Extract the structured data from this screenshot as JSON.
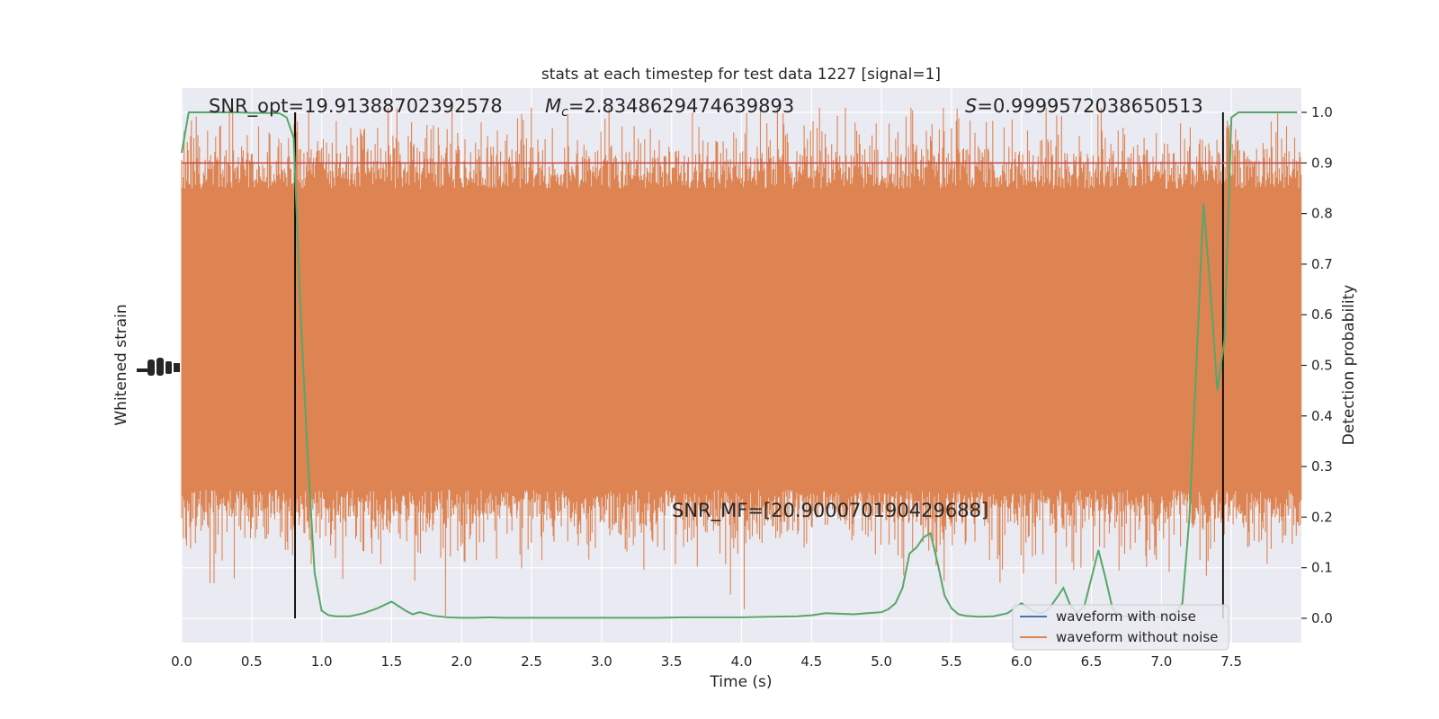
{
  "chart_data": {
    "type": "line",
    "title": "stats at each timestep for test data 1227 [signal=1]",
    "xlabel": "Time (s)",
    "ylabel_left": "Whitened strain",
    "ylabel_right": "Detection probability",
    "xlim": [
      0.0,
      8.0
    ],
    "ylim_right": [
      -0.048,
      1.048
    ],
    "x_ticks": [
      "0.0",
      "0.5",
      "1.0",
      "1.5",
      "2.0",
      "2.5",
      "3.0",
      "3.5",
      "4.0",
      "4.5",
      "5.0",
      "5.5",
      "6.0",
      "6.5",
      "7.0",
      "7.5"
    ],
    "y_ticks_right": [
      "0.0",
      "0.1",
      "0.2",
      "0.3",
      "0.4",
      "0.5",
      "0.6",
      "0.7",
      "0.8",
      "0.9",
      "1.0"
    ],
    "grid": true,
    "threshold": 0.9,
    "markers_x": [
      0.81,
      7.44
    ],
    "annotations": {
      "snr_opt": "SNR_opt=19.91388702392578",
      "mc_symbol": "M",
      "mc_sub": "c",
      "mc_value": "=2.8348629474639893",
      "s_symbol": "S",
      "s_value": "=0.9999572038650513",
      "snr_mf": "SNR_MF=[20.900070190429688]"
    },
    "legend": {
      "position": "lower-right",
      "entries": [
        "waveform with noise",
        "waveform without noise"
      ]
    },
    "series": [
      {
        "name": "Detection probability",
        "x": [
          0.0,
          0.05,
          0.1,
          0.2,
          0.3,
          0.4,
          0.5,
          0.6,
          0.7,
          0.75,
          0.8,
          0.85,
          0.9,
          0.95,
          1.0,
          1.05,
          1.1,
          1.2,
          1.3,
          1.4,
          1.5,
          1.6,
          1.65,
          1.7,
          1.8,
          1.9,
          2.0,
          2.1,
          2.2,
          2.3,
          2.4,
          2.5,
          2.6,
          2.8,
          3.0,
          3.2,
          3.4,
          3.6,
          3.8,
          4.0,
          4.2,
          4.4,
          4.5,
          4.6,
          4.7,
          4.8,
          4.9,
          5.0,
          5.05,
          5.1,
          5.15,
          5.2,
          5.25,
          5.3,
          5.35,
          5.4,
          5.45,
          5.5,
          5.55,
          5.6,
          5.7,
          5.8,
          5.9,
          6.0,
          6.05,
          6.1,
          6.15,
          6.2,
          6.25,
          6.3,
          6.35,
          6.4,
          6.45,
          6.5,
          6.55,
          6.6,
          6.65,
          6.7,
          6.8,
          6.9,
          7.0,
          7.1,
          7.15,
          7.2,
          7.25,
          7.3,
          7.35,
          7.4,
          7.45,
          7.5,
          7.55,
          7.6,
          7.7,
          7.8,
          7.9,
          7.97
        ],
        "values": [
          0.92,
          1.0,
          1.0,
          1.0,
          1.0,
          1.0,
          0.999,
          0.999,
          0.998,
          0.99,
          0.95,
          0.6,
          0.32,
          0.09,
          0.015,
          0.006,
          0.004,
          0.004,
          0.01,
          0.02,
          0.033,
          0.015,
          0.008,
          0.012,
          0.005,
          0.002,
          0.001,
          0.001,
          0.002,
          0.001,
          0.001,
          0.001,
          0.001,
          0.001,
          0.001,
          0.001,
          0.001,
          0.002,
          0.002,
          0.002,
          0.003,
          0.004,
          0.006,
          0.01,
          0.009,
          0.008,
          0.01,
          0.012,
          0.018,
          0.03,
          0.06,
          0.128,
          0.14,
          0.16,
          0.168,
          0.11,
          0.045,
          0.02,
          0.008,
          0.005,
          0.003,
          0.004,
          0.01,
          0.03,
          0.02,
          0.012,
          0.01,
          0.02,
          0.04,
          0.06,
          0.025,
          0.01,
          0.025,
          0.08,
          0.135,
          0.08,
          0.02,
          0.005,
          0.003,
          0.002,
          0.003,
          0.01,
          0.03,
          0.2,
          0.5,
          0.82,
          0.65,
          0.45,
          0.55,
          0.99,
          1.0,
          1.0,
          1.0,
          1.0,
          1.0,
          1.0
        ]
      }
    ]
  },
  "colors": {
    "plot_bg": "#eaeaf2",
    "grid": "#ffffff",
    "waveform_with_noise": "#4c72b0",
    "waveform_without_noise": "#dd8452",
    "probability": "#55a868",
    "threshold": "#c44e52",
    "marker": "#000000"
  }
}
